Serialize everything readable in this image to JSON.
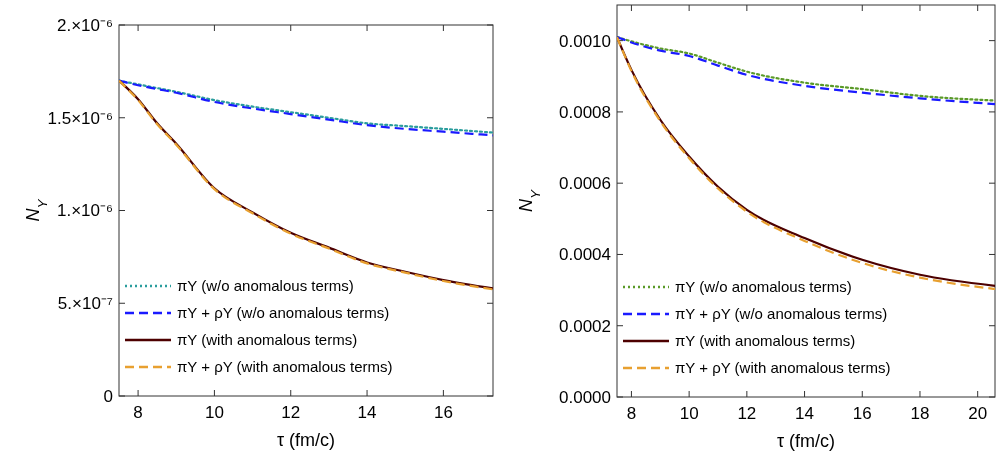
{
  "chart_data": [
    {
      "type": "line",
      "xlabel": "τ (fm/c)",
      "ylabel": "N$_{Y}$",
      "xlim": [
        7.5,
        17.3
      ],
      "xticks": [
        8,
        10,
        12,
        14,
        16
      ],
      "ylim": [
        0,
        2e-06
      ],
      "yticks": [
        {
          "value": 0,
          "label": "0"
        },
        {
          "value": 5e-07,
          "label": "5.×10⁻⁷"
        },
        {
          "value": 1e-06,
          "label": "1.×10⁻⁶"
        },
        {
          "value": 1.5e-06,
          "label": "1.5×10⁻⁶"
        },
        {
          "value": 2e-06,
          "label": "2.×10⁻⁶"
        }
      ],
      "legend": "bottom left",
      "grid": false,
      "x": [
        7.5,
        8,
        8.5,
        9,
        10,
        11,
        12,
        13,
        14,
        15,
        16,
        17.3
      ],
      "series": [
        {
          "name": "πY (w/o anomalous terms)",
          "color": "#2a9d9d",
          "line_style": "dotted",
          "values": [
            1.7e-06,
            1.68e-06,
            1.66e-06,
            1.64e-06,
            1.595e-06,
            1.56e-06,
            1.53e-06,
            1.5e-06,
            1.47e-06,
            1.455e-06,
            1.44e-06,
            1.42e-06
          ]
        },
        {
          "name": "πY + ρY (w/o anomalous terms)",
          "color": "#1a1aff",
          "line_style": "dashed",
          "values": [
            1.7e-06,
            1.675e-06,
            1.655e-06,
            1.635e-06,
            1.585e-06,
            1.55e-06,
            1.52e-06,
            1.49e-06,
            1.46e-06,
            1.44e-06,
            1.425e-06,
            1.405e-06
          ]
        },
        {
          "name": "πY (with anomalous terms)",
          "color": "#4d0000",
          "line_style": "solid",
          "values": [
            1.7e-06,
            1.6e-06,
            1.47e-06,
            1.36e-06,
            1.12e-06,
            9.9e-07,
            8.8e-07,
            8e-07,
            7.2e-07,
            6.7e-07,
            6.25e-07,
            5.8e-07
          ]
        },
        {
          "name": "πY + ρY (with anomalous terms)",
          "color": "#e8a030",
          "line_style": "dashed",
          "values": [
            1.7e-06,
            1.595e-06,
            1.465e-06,
            1.355e-06,
            1.115e-06,
            9.85e-07,
            8.75e-07,
            7.95e-07,
            7.15e-07,
            6.65e-07,
            6.2e-07,
            5.75e-07
          ]
        }
      ]
    },
    {
      "type": "line",
      "xlabel": "τ (fm/c)",
      "ylabel": "N$_{Y}$",
      "xlim": [
        7.5,
        20.6
      ],
      "xticks": [
        8,
        10,
        12,
        14,
        16,
        18,
        20
      ],
      "ylim": [
        0,
        0.0011
      ],
      "yticks": [
        {
          "value": 0,
          "label": "0.0000"
        },
        {
          "value": 0.0002,
          "label": "0.0002"
        },
        {
          "value": 0.0004,
          "label": "0.0004"
        },
        {
          "value": 0.0006,
          "label": "0.0006"
        },
        {
          "value": 0.0008,
          "label": "0.0008"
        },
        {
          "value": 0.001,
          "label": "0.0010"
        }
      ],
      "legend": "bottom left",
      "grid": false,
      "x": [
        7.5,
        8,
        9,
        10,
        11,
        12,
        14,
        16,
        18,
        20.6
      ],
      "series": [
        {
          "name": "πY (w/o anomalous terms)",
          "color": "#5a9a28",
          "line_style": "dotted",
          "values": [
            0.00101,
            0.000998,
            0.000978,
            0.000964,
            0.000938,
            0.000913,
            0.000882,
            0.000864,
            0.000845,
            0.000832
          ]
        },
        {
          "name": "πY + ρY (w/o anomalous terms)",
          "color": "#1a1aff",
          "line_style": "dashed",
          "values": [
            0.00101,
            0.000995,
            0.000972,
            0.000957,
            0.00093,
            0.000904,
            0.000873,
            0.000854,
            0.000838,
            0.000822
          ]
        },
        {
          "name": "πY (with anomalous terms)",
          "color": "#4d0000",
          "line_style": "solid",
          "values": [
            0.00101,
            0.000918,
            0.000778,
            0.000675,
            0.00059,
            0.000525,
            0.000446,
            0.000385,
            0.000343,
            0.000312
          ]
        },
        {
          "name": "πY + ρY (with anomalous terms)",
          "color": "#e8a030",
          "line_style": "dashed",
          "values": [
            0.00101,
            0.000915,
            0.000774,
            0.00067,
            0.000585,
            0.00052,
            0.000438,
            0.000376,
            0.000335,
            0.000303
          ]
        }
      ]
    }
  ]
}
